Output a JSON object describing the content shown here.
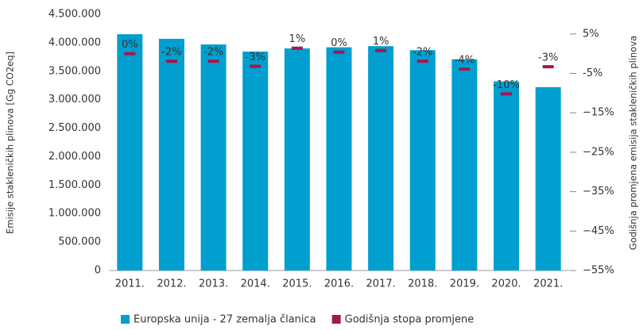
{
  "chart_data": {
    "type": "bar",
    "categories": [
      "2011.",
      "2012.",
      "2013.",
      "2014.",
      "2015.",
      "2016.",
      "2017.",
      "2018.",
      "2019.",
      "2020.",
      "2021."
    ],
    "ylabel": "Emisije stakleničkih plinova [Gg CO2eq]",
    "y2label": "Godišnja promjena emisija stakleničkih plinova",
    "ylim": [
      0,
      4500000
    ],
    "yticks": [
      0,
      {
        "value": 500000,
        "label": "500.000"
      },
      {
        "value": 1000000,
        "label": "1.000.000"
      },
      {
        "value": 1500000,
        "label": "1.500.000"
      },
      {
        "value": 2000000,
        "label": "2.000.000"
      },
      {
        "value": 2500000,
        "label": "2.500.000"
      },
      {
        "value": 3000000,
        "label": "3.000.000"
      },
      {
        "value": 3500000,
        "label": "3.500.000"
      },
      {
        "value": 4000000,
        "label": "4.000.000"
      },
      {
        "value": 4500000,
        "label": "4.500.000"
      }
    ],
    "y2lim": [
      -55,
      10
    ],
    "y2ticks": [
      {
        "value": 5,
        "label": "5%"
      },
      {
        "value": -5,
        "label": "-5%"
      },
      {
        "value": -15,
        "label": "−15%"
      },
      {
        "value": -25,
        "label": "−25%"
      },
      {
        "value": -35,
        "label": "−35%"
      },
      {
        "value": -45,
        "label": "−45%"
      },
      {
        "value": -55,
        "label": "−55%"
      }
    ],
    "series": [
      {
        "name": "Europska unija - 27 zemalja članica",
        "color": "#009fcf",
        "type": "bar",
        "values": [
          4150000,
          4070000,
          3970000,
          3845000,
          3900000,
          3920000,
          3940000,
          3870000,
          3710000,
          3320000,
          3220000
        ]
      },
      {
        "name": "Godišnja stopa promjene",
        "color": "#a8154e",
        "type": "marker",
        "axis": "y2",
        "values": [
          0,
          -1.9,
          -1.9,
          -3.2,
          1.4,
          0.4,
          0.8,
          -1.9,
          -3.9,
          -10.2,
          -3.3
        ],
        "value_labels": [
          "0%",
          "-2%",
          "-2%",
          "-3%",
          "1%",
          "0%",
          "1%",
          "-2%",
          "-4%",
          "-10%",
          "-3%"
        ]
      }
    ],
    "legend": "bottom"
  }
}
